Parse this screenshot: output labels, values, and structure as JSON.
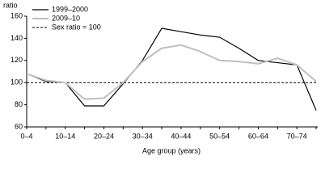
{
  "chart_data": {
    "type": "line",
    "y_axis_title": "ratio",
    "x_axis_title": "Age group (years)",
    "categories": [
      "0–4",
      null,
      "10–14",
      null,
      "20–24",
      null,
      "30–34",
      null,
      "40–44",
      null,
      "50–54",
      null,
      "60–64",
      null,
      "70–74",
      null
    ],
    "series": [
      {
        "name": "1999–2000",
        "color": "#000000",
        "values": [
          108,
          101,
          100,
          79,
          79,
          99,
          120,
          149,
          146,
          143,
          141,
          131,
          120,
          118,
          116,
          75
        ]
      },
      {
        "name": "2009–10",
        "color": "#bfbfbf",
        "values": [
          108,
          102,
          100,
          85,
          86,
          100,
          119,
          131,
          134,
          128,
          120,
          119,
          117,
          122,
          116,
          101
        ]
      }
    ],
    "reference_line": {
      "name": "Sex ratio = 100",
      "value": 100,
      "color": "#000000"
    },
    "ylim": [
      60,
      160
    ],
    "yticks": [
      60,
      80,
      100,
      120,
      140,
      160
    ],
    "legend": "top-left"
  }
}
